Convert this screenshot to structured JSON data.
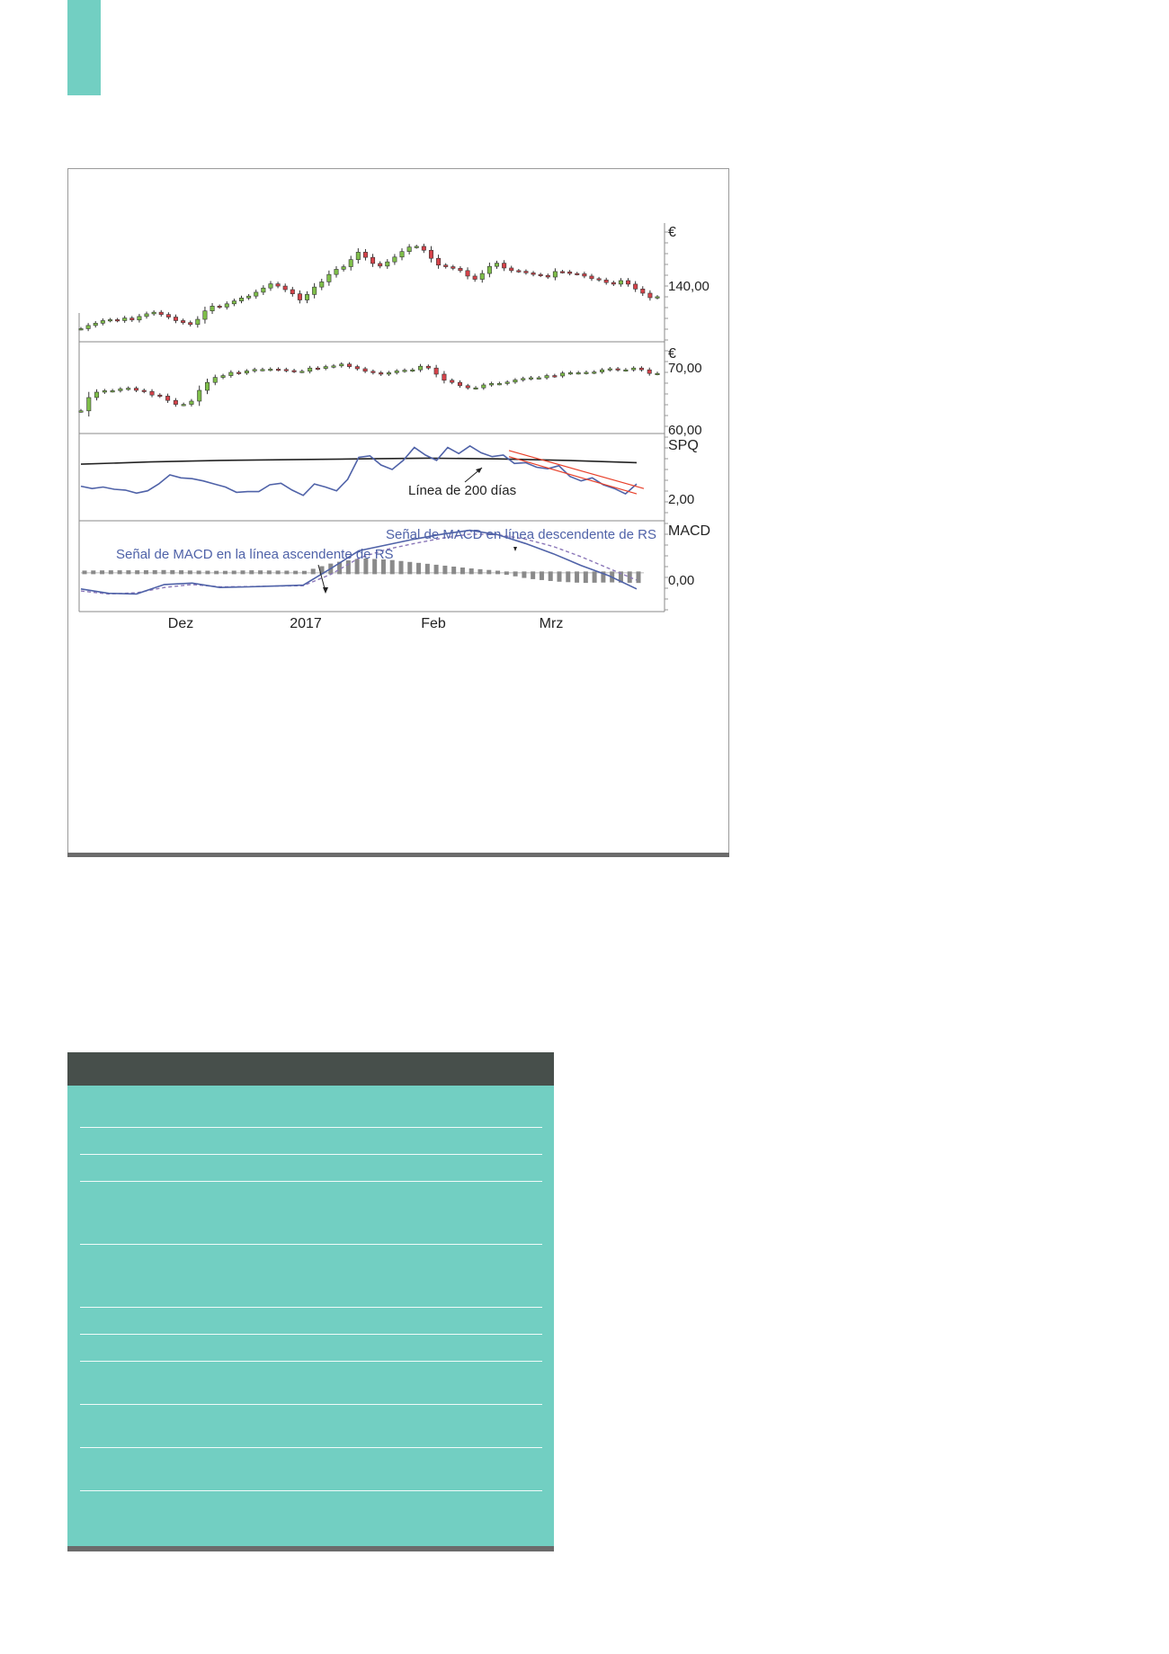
{
  "colors": {
    "accent": "#72cfc2",
    "up_candle": "#7fbf4a",
    "down_candle": "#d6434a",
    "rs_line": "#4f62a8",
    "trend_channel": "#e8402a",
    "ma_line": "#222222",
    "macd_signal": "#8a76b8",
    "histogram": "#8a8a8a",
    "table_header": "#474f4b",
    "table_body": "#72cfc2"
  },
  "chart_data": [
    {
      "type": "candlestick",
      "panel": "price",
      "unit_label": "€",
      "y_tick_labels": [
        "140,00"
      ],
      "ylim": [
        128,
        162
      ],
      "x_tick_labels": [
        "Dez",
        "2017",
        "Feb",
        "Mrz"
      ],
      "close": [
        131.5,
        132.5,
        133.2,
        134.0,
        134.3,
        134.0,
        134.8,
        134.2,
        135.3,
        136.1,
        136.6,
        135.9,
        135.1,
        134.0,
        133.4,
        132.8,
        134.4,
        137.0,
        138.5,
        138.2,
        139.2,
        140.1,
        141.0,
        141.6,
        142.8,
        144.1,
        145.4,
        144.7,
        143.6,
        142.3,
        140.4,
        142.1,
        144.4,
        146.0,
        148.3,
        149.9,
        150.7,
        152.9,
        155.2,
        153.6,
        151.7,
        150.9,
        152.2,
        153.7,
        155.4,
        156.8,
        157.0,
        155.8,
        153.3,
        151.2,
        150.7,
        150.2,
        149.5,
        147.8,
        146.8,
        148.6,
        150.8,
        151.8,
        150.3,
        149.5,
        149.3,
        148.8,
        148.3,
        148.0,
        147.5,
        149.2,
        149.1,
        148.6,
        148.5,
        147.8,
        147.0,
        146.6,
        145.8,
        145.3,
        146.4,
        145.3,
        143.8,
        142.5,
        141.1,
        141.4
      ]
    },
    {
      "type": "candlestick",
      "panel": "comparison",
      "unit_label": "€",
      "y_tick_labels": [
        "70,00",
        "60,00"
      ],
      "ylim": [
        55,
        78
      ],
      "close": [
        60.8,
        64.5,
        66.0,
        66.4,
        66.4,
        66.9,
        67.1,
        66.5,
        66.2,
        65.2,
        64.9,
        63.7,
        62.6,
        62.6,
        63.5,
        66.5,
        68.7,
        70.1,
        70.6,
        71.5,
        71.3,
        71.9,
        72.3,
        72.3,
        72.4,
        72.3,
        72.0,
        71.8,
        71.8,
        72.7,
        72.6,
        73.1,
        73.3,
        73.8,
        73.1,
        72.5,
        71.8,
        71.4,
        71.0,
        71.4,
        71.9,
        72.1,
        72.2,
        73.2,
        72.7,
        71.0,
        69.3,
        68.7,
        67.8,
        67.2,
        67.2,
        68.0,
        68.4,
        68.4,
        68.8,
        69.4,
        69.8,
        70.0,
        70.0,
        70.6,
        70.5,
        71.3,
        71.4,
        71.4,
        71.5,
        71.6,
        72.2,
        72.5,
        72.2,
        72.2,
        72.7,
        72.2,
        71.2,
        71.2
      ]
    },
    {
      "type": "line",
      "panel": "relative_strength",
      "unit_label": "SPQ",
      "y_tick_labels": [
        "2,00"
      ],
      "ylim": [
        1.5,
        2.6
      ],
      "series": [
        {
          "values": [
            1.93,
            1.9,
            1.92,
            1.89,
            1.88,
            1.84,
            1.87,
            1.96,
            2.08,
            2.04,
            2.03,
            2.0,
            1.96,
            1.92,
            1.85,
            1.86,
            1.86,
            1.95,
            1.97,
            1.88,
            1.81,
            1.96,
            1.92,
            1.87,
            2.02,
            2.31,
            2.33,
            2.21,
            2.15,
            2.27,
            2.44,
            2.34,
            2.27,
            2.44,
            2.36,
            2.46,
            2.37,
            2.32,
            2.34,
            2.23,
            2.24,
            2.18,
            2.16,
            2.2,
            2.06,
            2.0,
            2.04,
            1.95,
            1.9,
            1.83,
            1.96
          ]
        },
        {
          "name": "Línea de 200 días",
          "values": [
            2.22,
            2.25,
            2.27,
            2.28,
            2.29,
            2.3,
            2.29,
            2.27,
            2.24
          ]
        },
        {
          "values": [
            2.4,
            1.9
          ]
        },
        {
          "values": [
            2.32,
            1.83
          ]
        }
      ],
      "annotations": [
        "Línea de 200 días"
      ]
    },
    {
      "type": "line",
      "panel": "macd",
      "unit_label": "MACD",
      "y_tick_labels": [
        "0,00"
      ],
      "ylim": [
        -1.2,
        1.5
      ],
      "series": [
        {
          "values": [
            -0.55,
            -0.7,
            -0.72,
            -0.4,
            -0.35,
            -0.5,
            -0.48,
            -0.45,
            -0.42,
            0.15,
            0.75,
            0.95,
            1.15,
            1.32,
            1.45,
            1.3,
            1.0,
            0.65,
            0.25,
            -0.1,
            -0.55
          ]
        },
        {
          "values": [
            -0.62,
            -0.72,
            -0.68,
            -0.5,
            -0.4,
            -0.48,
            -0.47,
            -0.45,
            -0.44,
            -0.05,
            0.5,
            0.8,
            1.0,
            1.18,
            1.32,
            1.3,
            1.15,
            0.9,
            0.55,
            0.15,
            -0.25
          ]
        },
        {
          "values": [
            0.03,
            0.04,
            0.04,
            0.05,
            0.03,
            0.02,
            0.04,
            0.03,
            0.02,
            0.3,
            0.45,
            0.4,
            0.3,
            0.2,
            0.1,
            0.02,
            -0.15,
            -0.25,
            -0.3,
            -0.28,
            -0.3
          ]
        }
      ],
      "annotations": [
        "Señal de MACD en línea descendente de RS",
        "Señal de MACD en la línea ascendente de RS"
      ]
    }
  ]
}
